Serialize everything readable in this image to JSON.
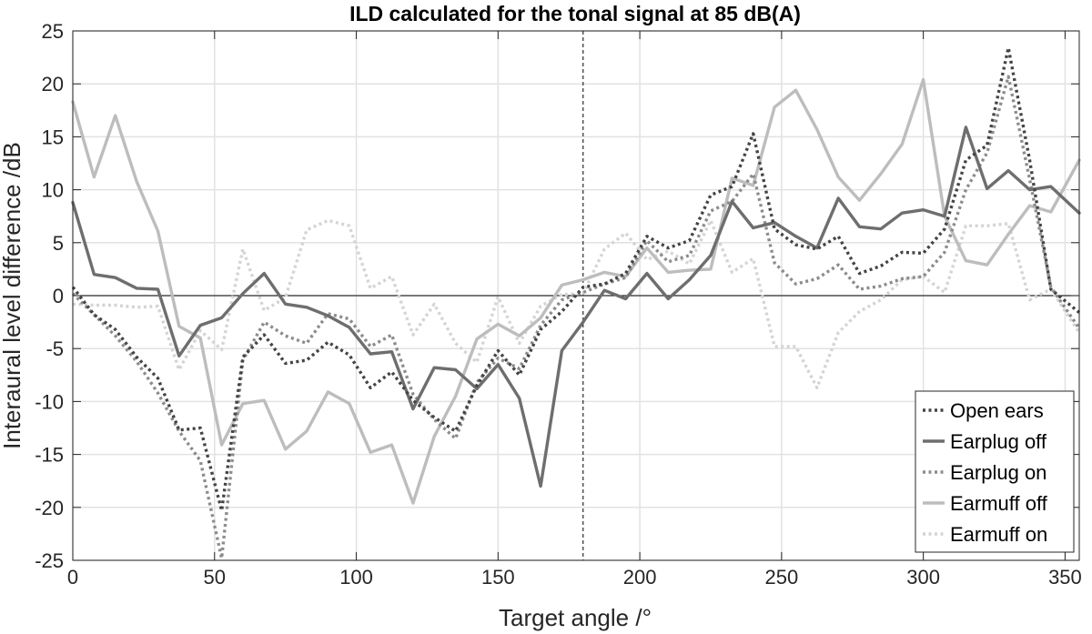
{
  "chart_data": {
    "type": "line",
    "title": "ILD calculated for the tonal signal at 85 dB(A)",
    "xlabel": "Target angle /°",
    "ylabel": "Interaural level difference /dB",
    "xlim": [
      0,
      355
    ],
    "ylim": [
      -25,
      25
    ],
    "xticks": [
      0,
      50,
      100,
      150,
      200,
      250,
      300,
      350
    ],
    "yticks": [
      -25,
      -20,
      -15,
      -10,
      -5,
      0,
      5,
      10,
      15,
      20,
      25
    ],
    "xtick_labels": [
      "0",
      "50",
      "100",
      "150",
      "200",
      "250",
      "300",
      "350"
    ],
    "ytick_labels": [
      "-25",
      "-20",
      "-15",
      "-10",
      "-5",
      "0",
      "5",
      "10",
      "15",
      "20",
      "25"
    ],
    "grid": true,
    "reference_lines": {
      "zero_line_y": 0,
      "dashed_vertical_x": 180
    },
    "legend_position": "bottom-right",
    "series": [
      {
        "name": "Open ears",
        "color": "#444444",
        "style": "dotted",
        "x": [
          0,
          7.5,
          15,
          22.5,
          30,
          37.5,
          45,
          52.5,
          60,
          67.5,
          75,
          82.5,
          90,
          97.5,
          105,
          112.5,
          120,
          127.5,
          135,
          142.5,
          150,
          157.5,
          165,
          172.5,
          180,
          187.5,
          195,
          202.5,
          210,
          217.5,
          225,
          232.5,
          240,
          247.5,
          255,
          262.5,
          270,
          277.5,
          285,
          292.5,
          300,
          307.5,
          315,
          322.5,
          330,
          337.5,
          345,
          355
        ],
        "y": [
          0.8,
          -1.8,
          -3.2,
          -5.8,
          -7.8,
          -12.7,
          -12.5,
          -20.3,
          -5.8,
          -3.7,
          -6.4,
          -6.1,
          -4.4,
          -5.6,
          -8.7,
          -7.2,
          -9.9,
          -11.5,
          -12.8,
          -8.5,
          -5.2,
          -7.5,
          -3.2,
          -1.5,
          0.8,
          1.1,
          2.1,
          5.6,
          4.5,
          5.2,
          9.5,
          10.3,
          15.3,
          6.3,
          4.8,
          4.4,
          5.6,
          2.1,
          2.8,
          4.1,
          4.0,
          6.3,
          12.8,
          14.2,
          23.4,
          12.8,
          0.6,
          -1.6
        ]
      },
      {
        "name": "Earplug off",
        "color": "#6e6e6e",
        "style": "solid",
        "x": [
          0,
          7.5,
          15,
          22.5,
          30,
          37.5,
          45,
          52.5,
          60,
          67.5,
          75,
          82.5,
          90,
          97.5,
          105,
          112.5,
          120,
          127.5,
          135,
          142.5,
          150,
          157.5,
          165,
          172.5,
          180,
          187.5,
          195,
          202.5,
          210,
          217.5,
          225,
          232.5,
          240,
          247.5,
          255,
          262.5,
          270,
          277.5,
          285,
          292.5,
          300,
          307.5,
          315,
          322.5,
          330,
          337.5,
          345,
          355
        ],
        "y": [
          8.8,
          2.0,
          1.7,
          0.7,
          0.6,
          -5.7,
          -2.8,
          -2.1,
          0.2,
          2.1,
          -0.8,
          -1.1,
          -1.9,
          -3.0,
          -5.5,
          -5.3,
          -10.7,
          -6.8,
          -7.0,
          -8.8,
          -6.5,
          -9.7,
          -18.0,
          -5.2,
          -2.5,
          0.5,
          -0.3,
          2.1,
          -0.3,
          1.5,
          3.8,
          8.9,
          6.4,
          6.9,
          5.6,
          4.5,
          9.2,
          6.5,
          6.3,
          7.8,
          8.1,
          7.5,
          15.9,
          10.1,
          11.8,
          10.0,
          10.3,
          7.8
        ]
      },
      {
        "name": "Earplug on",
        "color": "#8c8c8c",
        "style": "dotted",
        "x": [
          0,
          7.5,
          15,
          22.5,
          30,
          37.5,
          45,
          52.5,
          60,
          67.5,
          75,
          82.5,
          90,
          97.5,
          105,
          112.5,
          120,
          127.5,
          135,
          142.5,
          150,
          157.5,
          165,
          172.5,
          180,
          187.5,
          195,
          202.5,
          210,
          217.5,
          225,
          232.5,
          240,
          247.5,
          255,
          262.5,
          270,
          277.5,
          285,
          292.5,
          300,
          307.5,
          315,
          322.5,
          330,
          337.5,
          345,
          355
        ],
        "y": [
          0.2,
          -1.8,
          -3.8,
          -6.2,
          -9.2,
          -12.8,
          -15.6,
          -24.8,
          -6.1,
          -2.5,
          -3.8,
          -4.5,
          -1.7,
          -2.2,
          -4.8,
          -3.7,
          -9.3,
          -11.7,
          -13.5,
          -8.2,
          -5.9,
          -6.9,
          -2.8,
          -0.4,
          0.3,
          1.1,
          1.7,
          5.2,
          3.2,
          3.8,
          8.0,
          8.9,
          11.5,
          3.1,
          1.1,
          1.6,
          2.9,
          0.6,
          0.9,
          1.6,
          1.8,
          4.1,
          10.0,
          13.5,
          20.7,
          11.0,
          0.8,
          -3.1
        ]
      },
      {
        "name": "Earmuff off",
        "color": "#bdbdbd",
        "style": "solid",
        "x": [
          0,
          7.5,
          15,
          22.5,
          30,
          37.5,
          45,
          52.5,
          60,
          67.5,
          75,
          82.5,
          90,
          97.5,
          105,
          112.5,
          120,
          127.5,
          135,
          142.5,
          150,
          157.5,
          165,
          172.5,
          180,
          187.5,
          195,
          202.5,
          210,
          217.5,
          225,
          232.5,
          240,
          247.5,
          255,
          262.5,
          270,
          277.5,
          285,
          292.5,
          300,
          307.5,
          315,
          322.5,
          330,
          337.5,
          345,
          355
        ],
        "y": [
          18.3,
          11.2,
          17.0,
          10.8,
          6.1,
          -2.9,
          -4.0,
          -14.1,
          -10.2,
          -9.9,
          -14.5,
          -12.8,
          -9.1,
          -10.2,
          -14.8,
          -14.1,
          -19.6,
          -13.3,
          -9.5,
          -4.1,
          -2.7,
          -3.8,
          -2.1,
          1.0,
          1.5,
          2.2,
          1.8,
          4.5,
          2.2,
          2.4,
          2.5,
          11.1,
          10.4,
          17.8,
          19.4,
          15.7,
          11.2,
          9.0,
          11.5,
          14.3,
          20.4,
          7.5,
          3.3,
          2.9,
          5.8,
          8.5,
          7.9,
          12.8
        ]
      },
      {
        "name": "Earmuff on",
        "color": "#d4d4d4",
        "style": "dotted",
        "x": [
          0,
          7.5,
          15,
          22.5,
          30,
          37.5,
          45,
          52.5,
          60,
          67.5,
          75,
          82.5,
          90,
          97.5,
          105,
          112.5,
          120,
          127.5,
          135,
          142.5,
          150,
          157.5,
          165,
          172.5,
          180,
          187.5,
          195,
          202.5,
          210,
          217.5,
          225,
          232.5,
          240,
          247.5,
          255,
          262.5,
          270,
          277.5,
          285,
          292.5,
          300,
          307.5,
          315,
          322.5,
          330,
          337.5,
          345,
          355
        ],
        "y": [
          -0.8,
          -0.9,
          -0.9,
          -1.1,
          -1.0,
          -7.0,
          -3.3,
          -5.1,
          4.4,
          -1.4,
          -0.2,
          6.2,
          7.1,
          6.6,
          0.7,
          1.8,
          -3.7,
          -0.8,
          -4.5,
          -6.3,
          -0.1,
          -4.5,
          -1.0,
          0.1,
          0.2,
          4.4,
          5.9,
          3.4,
          4.2,
          3.0,
          7.1,
          2.2,
          3.5,
          -4.8,
          -4.8,
          -8.7,
          -3.5,
          -1.5,
          -0.4,
          1.5,
          1.8,
          0.3,
          6.6,
          6.6,
          6.8,
          -0.4,
          0.6,
          -3.5
        ]
      }
    ]
  }
}
